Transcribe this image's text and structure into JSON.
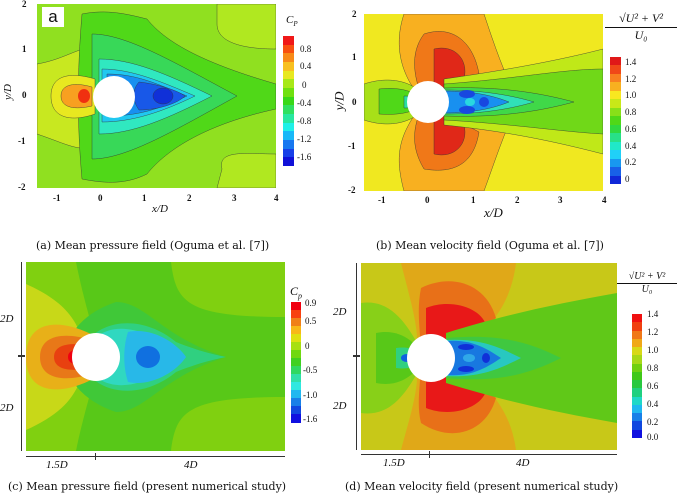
{
  "figure": {
    "captions": {
      "a": "(a) Mean pressure field (Oguma et al. [7])",
      "b": "(b) Mean velocity field (Oguma et al. [7])",
      "c": "(c) Mean pressure field (present numerical study)",
      "d": "(d) Mean velocity field (present numerical study)"
    },
    "panel_a_label": "a"
  },
  "chart_data": [
    {
      "type": "heatmap",
      "panel": "a",
      "title": "Mean pressure field (Oguma et al. [7])",
      "xlabel": "x/D",
      "ylabel": "y/D",
      "xlim": [
        -1.4,
        4
      ],
      "ylim": [
        -2,
        2
      ],
      "xticks": [
        "-1",
        "0",
        "1",
        "2",
        "3",
        "4"
      ],
      "yticks": [
        "2",
        "1",
        "0",
        "-1",
        "-2"
      ],
      "colorbar": {
        "title": "C",
        "title_sub": "P",
        "ticks": [
          "0.8",
          "0.4",
          "0",
          "-0.4",
          "-0.8",
          "-1.2",
          "-1.6"
        ],
        "range": [
          -1.8,
          1.0
        ]
      },
      "colors": [
        "#f01818",
        "#f85010",
        "#f88a18",
        "#f8c020",
        "#e8e820",
        "#a8e818",
        "#70e010",
        "#38d818",
        "#30e060",
        "#28e8a0",
        "#20f0e8",
        "#18b8f8",
        "#1878f0",
        "#1840e8",
        "#1010d8"
      ]
    },
    {
      "type": "heatmap",
      "panel": "b",
      "title": "Mean velocity field (Oguma et al. [7])",
      "xlabel": "x/D",
      "ylabel": "y/D",
      "xlim": [
        -1.4,
        4
      ],
      "ylim": [
        -2,
        2
      ],
      "xticks": [
        "-1",
        "0",
        "1",
        "2",
        "3",
        "4"
      ],
      "yticks": [
        "2",
        "1",
        "0",
        "-1",
        "-2"
      ],
      "colorbar": {
        "title_num": "√U² + V²",
        "title_den": "U₀",
        "ticks": [
          "1.4",
          "1.2",
          "1.0",
          "0.8",
          "0.6",
          "0.4",
          "0.2",
          "0"
        ],
        "range": [
          0,
          1.5
        ]
      },
      "colors": [
        "#e01818",
        "#f04818",
        "#f88020",
        "#f8b020",
        "#f8e820",
        "#c8e818",
        "#88e018",
        "#50d818",
        "#30d840",
        "#28e088",
        "#20e8c8",
        "#20d0f8",
        "#1898f0",
        "#1860e8",
        "#1028d8"
      ]
    },
    {
      "type": "heatmap",
      "panel": "c",
      "title": "Mean pressure field (present numerical study)",
      "dimensions": {
        "upstream": "1.5D",
        "downstream": "4D",
        "upper": "2D",
        "lower": "2D"
      },
      "colorbar": {
        "title": "C",
        "title_sub": "p",
        "ticks": [
          "0.9",
          "0.5",
          "0",
          "-0.5",
          "-1.0",
          "-1.6"
        ],
        "range": [
          -1.6,
          0.9
        ]
      },
      "colors": [
        "#f00010",
        "#f84010",
        "#f08018",
        "#f8b818",
        "#e0e010",
        "#a8e010",
        "#70d810",
        "#40d020",
        "#30d860",
        "#30e0a8",
        "#30e8e0",
        "#20b8f0",
        "#1880e8",
        "#1048e0",
        "#1010e0"
      ]
    },
    {
      "type": "heatmap",
      "panel": "d",
      "title": "Mean velocity field (present numerical study)",
      "dimensions": {
        "upstream": "1.5D",
        "downstream": "4D",
        "upper": "2D",
        "lower": "2D"
      },
      "colorbar": {
        "title_num": "√U² + V²",
        "title_den": "U₀",
        "ticks": [
          "1.4",
          "1.2",
          "1.0",
          "0.8",
          "0.6",
          "0.4",
          "0.2",
          "0.0"
        ],
        "range": [
          0,
          1.4
        ]
      },
      "colors": [
        "#f01010",
        "#f04010",
        "#f07818",
        "#f0a818",
        "#d8d818",
        "#a8d818",
        "#70d010",
        "#40c818",
        "#28c840",
        "#20d080",
        "#20d8c8",
        "#20b8f0",
        "#1880e8",
        "#1048e0",
        "#1010e0"
      ]
    }
  ]
}
